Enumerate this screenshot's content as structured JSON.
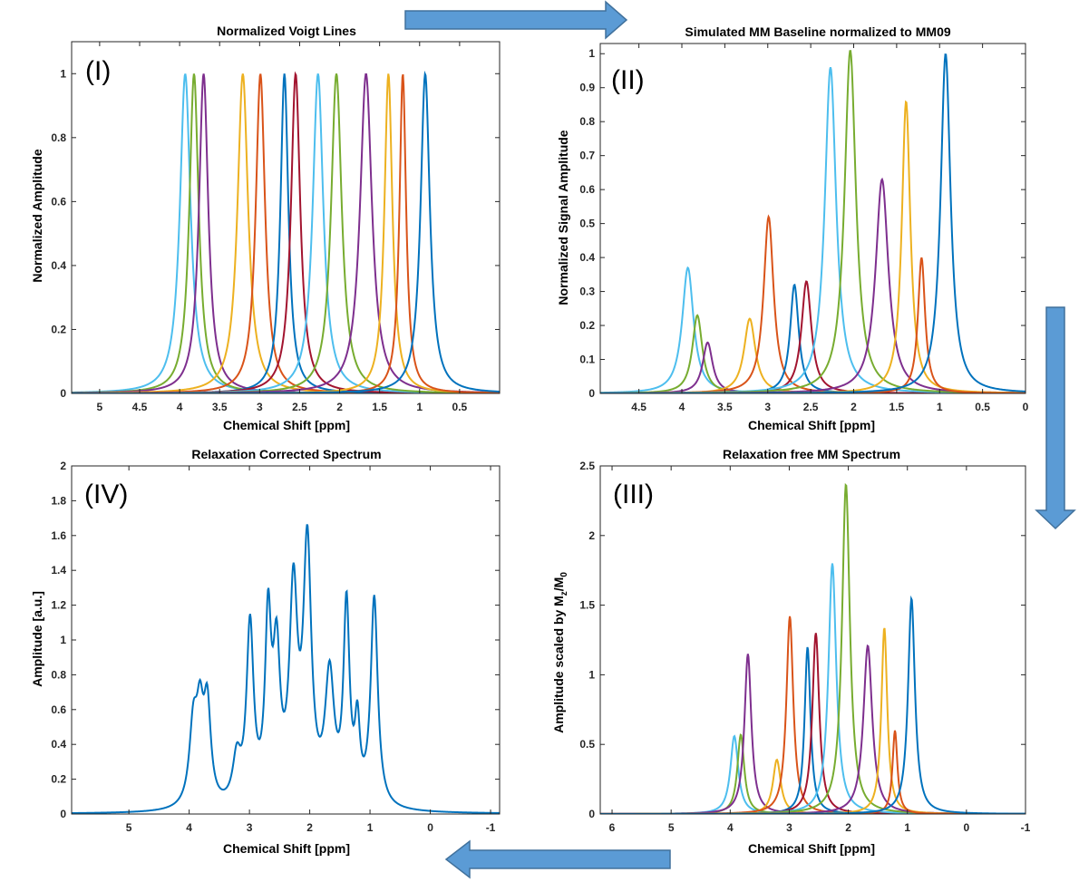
{
  "colors": {
    "blue": "#0072BD",
    "orange": "#D95319",
    "yellow": "#EDB120",
    "purple": "#7E2F8E",
    "green": "#77AC30",
    "cyan": "#4DBEEE",
    "darkred": "#A2142F",
    "arrow": "#5B9BD5"
  },
  "flow_arrows": [
    "right",
    "down",
    "left"
  ],
  "chart_data": [
    {
      "panel": "(I)",
      "type": "line",
      "title": "Normalized Voigt Lines",
      "xlabel": "Chemical Shift [ppm]",
      "ylabel": "Normalized Amplitude",
      "x_reversed": true,
      "xlim": [
        0,
        5.35
      ],
      "ylim": [
        0,
        1.1
      ],
      "xticks": [
        5,
        4.5,
        4,
        3.5,
        3,
        2.5,
        2,
        1.5,
        1,
        0.5
      ],
      "xtick_labels": [
        "5",
        "4.5",
        "4",
        "3.5",
        "3",
        "2.5",
        "2",
        "1.5",
        "1",
        "0.5"
      ],
      "yticks": [
        0,
        0.2,
        0.4,
        0.6,
        0.8,
        1
      ],
      "ytick_labels": [
        "0",
        "0.2",
        "0.4",
        "0.6",
        "0.8",
        "1"
      ],
      "series": [
        {
          "center": 3.93,
          "amplitude": 1.0,
          "width": 0.08,
          "color": "cyan"
        },
        {
          "center": 3.82,
          "amplitude": 1.0,
          "width": 0.07,
          "color": "green"
        },
        {
          "center": 3.7,
          "amplitude": 1.0,
          "width": 0.07,
          "color": "purple"
        },
        {
          "center": 3.21,
          "amplitude": 1.0,
          "width": 0.08,
          "color": "yellow"
        },
        {
          "center": 2.99,
          "amplitude": 1.0,
          "width": 0.07,
          "color": "orange"
        },
        {
          "center": 2.69,
          "amplitude": 1.0,
          "width": 0.06,
          "color": "blue"
        },
        {
          "center": 2.55,
          "amplitude": 1.0,
          "width": 0.07,
          "color": "darkred"
        },
        {
          "center": 2.27,
          "amplitude": 1.0,
          "width": 0.08,
          "color": "cyan"
        },
        {
          "center": 2.04,
          "amplitude": 1.0,
          "width": 0.08,
          "color": "green"
        },
        {
          "center": 1.67,
          "amplitude": 1.0,
          "width": 0.09,
          "color": "purple"
        },
        {
          "center": 1.39,
          "amplitude": 1.0,
          "width": 0.06,
          "color": "yellow"
        },
        {
          "center": 1.21,
          "amplitude": 1.0,
          "width": 0.05,
          "color": "orange"
        },
        {
          "center": 0.93,
          "amplitude": 1.0,
          "width": 0.07,
          "color": "blue"
        }
      ]
    },
    {
      "panel": "(II)",
      "type": "line",
      "title": "Simulated MM Baseline normalized to MM09",
      "xlabel": "Chemical Shift [ppm]",
      "ylabel": "Normalized Signal Amplitude",
      "x_reversed": true,
      "xlim": [
        0,
        4.95
      ],
      "ylim": [
        0,
        1.03
      ],
      "xticks": [
        4.5,
        4,
        3.5,
        3,
        2.5,
        2,
        1.5,
        1,
        0.5,
        0
      ],
      "xtick_labels": [
        "4.5",
        "4",
        "3.5",
        "3",
        "2.5",
        "2",
        "1.5",
        "1",
        "0.5",
        "0"
      ],
      "yticks": [
        0,
        0.1,
        0.2,
        0.3,
        0.4,
        0.5,
        0.6,
        0.7,
        0.8,
        0.9,
        1
      ],
      "ytick_labels": [
        "0",
        "0.1",
        "0.2",
        "0.3",
        "0.4",
        "0.5",
        "0.6",
        "0.7",
        "0.8",
        "0.9",
        "1"
      ],
      "series": [
        {
          "center": 3.93,
          "amplitude": 0.37,
          "width": 0.08,
          "color": "cyan"
        },
        {
          "center": 3.82,
          "amplitude": 0.23,
          "width": 0.07,
          "color": "green"
        },
        {
          "center": 3.7,
          "amplitude": 0.15,
          "width": 0.07,
          "color": "purple"
        },
        {
          "center": 3.21,
          "amplitude": 0.22,
          "width": 0.08,
          "color": "yellow"
        },
        {
          "center": 2.99,
          "amplitude": 0.52,
          "width": 0.07,
          "color": "orange"
        },
        {
          "center": 2.69,
          "amplitude": 0.32,
          "width": 0.06,
          "color": "blue"
        },
        {
          "center": 2.55,
          "amplitude": 0.33,
          "width": 0.07,
          "color": "darkred"
        },
        {
          "center": 2.27,
          "amplitude": 0.96,
          "width": 0.08,
          "color": "cyan"
        },
        {
          "center": 2.04,
          "amplitude": 1.01,
          "width": 0.08,
          "color": "green"
        },
        {
          "center": 1.67,
          "amplitude": 0.63,
          "width": 0.09,
          "color": "purple"
        },
        {
          "center": 1.39,
          "amplitude": 0.86,
          "width": 0.06,
          "color": "yellow"
        },
        {
          "center": 1.21,
          "amplitude": 0.4,
          "width": 0.05,
          "color": "orange"
        },
        {
          "center": 0.93,
          "amplitude": 1.0,
          "width": 0.07,
          "color": "blue"
        }
      ]
    },
    {
      "panel": "(III)",
      "type": "line",
      "title": "Relaxation free MM Spectrum",
      "xlabel": "Chemical Shift [ppm]",
      "ylabel": "Amplitude scaled by Mz/M0",
      "x_reversed": true,
      "xlim": [
        -1,
        6.2
      ],
      "ylim": [
        0,
        2.5
      ],
      "xticks": [
        6,
        5,
        4,
        3,
        2,
        1,
        0,
        -1
      ],
      "xtick_labels": [
        "6",
        "5",
        "4",
        "3",
        "2",
        "1",
        "0",
        "-1"
      ],
      "yticks": [
        0,
        0.5,
        1,
        1.5,
        2,
        2.5
      ],
      "ytick_labels": [
        "0",
        "0.5",
        "1",
        "1.5",
        "2",
        "2.5"
      ],
      "series": [
        {
          "center": 3.93,
          "amplitude": 0.56,
          "width": 0.08,
          "color": "cyan"
        },
        {
          "center": 3.82,
          "amplitude": 0.57,
          "width": 0.07,
          "color": "green"
        },
        {
          "center": 3.7,
          "amplitude": 1.15,
          "width": 0.07,
          "color": "purple"
        },
        {
          "center": 3.21,
          "amplitude": 0.39,
          "width": 0.08,
          "color": "yellow"
        },
        {
          "center": 2.99,
          "amplitude": 1.42,
          "width": 0.07,
          "color": "orange"
        },
        {
          "center": 2.69,
          "amplitude": 1.2,
          "width": 0.06,
          "color": "blue"
        },
        {
          "center": 2.55,
          "amplitude": 1.3,
          "width": 0.07,
          "color": "darkred"
        },
        {
          "center": 2.27,
          "amplitude": 1.8,
          "width": 0.08,
          "color": "cyan"
        },
        {
          "center": 2.04,
          "amplitude": 2.37,
          "width": 0.08,
          "color": "green"
        },
        {
          "center": 1.67,
          "amplitude": 1.21,
          "width": 0.09,
          "color": "purple"
        },
        {
          "center": 1.39,
          "amplitude": 1.34,
          "width": 0.06,
          "color": "yellow"
        },
        {
          "center": 1.21,
          "amplitude": 0.6,
          "width": 0.05,
          "color": "orange"
        },
        {
          "center": 0.93,
          "amplitude": 1.55,
          "width": 0.07,
          "color": "blue"
        }
      ]
    },
    {
      "panel": "(IV)",
      "type": "line",
      "title": "Relaxation Corrected Spectrum",
      "xlabel": "Chemical Shift [ppm]",
      "ylabel": "Amplitude [a.u.]",
      "x_reversed": true,
      "xlim": [
        -1.15,
        5.95
      ],
      "ylim": [
        0,
        2
      ],
      "xticks": [
        5,
        4,
        3,
        2,
        1,
        0,
        -1
      ],
      "xtick_labels": [
        "5",
        "4",
        "3",
        "2",
        "1",
        "0",
        "-1"
      ],
      "yticks": [
        0,
        0.2,
        0.4,
        0.6,
        0.8,
        1,
        1.2,
        1.4,
        1.6,
        1.8,
        2
      ],
      "ytick_labels": [
        "0",
        "0.2",
        "0.4",
        "0.6",
        "0.8",
        "1",
        "1.2",
        "1.4",
        "1.6",
        "1.8",
        "2"
      ],
      "series": [
        {
          "color": "blue",
          "components": [
            {
              "center": 3.93,
              "amplitude": 0.45,
              "width": 0.08
            },
            {
              "center": 3.82,
              "amplitude": 0.45,
              "width": 0.07
            },
            {
              "center": 3.7,
              "amplitude": 0.55,
              "width": 0.07
            },
            {
              "center": 3.21,
              "amplitude": 0.25,
              "width": 0.08
            },
            {
              "center": 2.99,
              "amplitude": 1.02,
              "width": 0.07
            },
            {
              "center": 2.69,
              "amplitude": 1.0,
              "width": 0.06
            },
            {
              "center": 2.55,
              "amplitude": 0.8,
              "width": 0.07
            },
            {
              "center": 2.27,
              "amplitude": 1.18,
              "width": 0.08
            },
            {
              "center": 2.04,
              "amplitude": 1.45,
              "width": 0.08
            },
            {
              "center": 1.67,
              "amplitude": 0.72,
              "width": 0.09
            },
            {
              "center": 1.39,
              "amplitude": 1.12,
              "width": 0.06
            },
            {
              "center": 1.21,
              "amplitude": 0.42,
              "width": 0.05
            },
            {
              "center": 0.93,
              "amplitude": 1.2,
              "width": 0.07
            }
          ]
        }
      ]
    }
  ]
}
